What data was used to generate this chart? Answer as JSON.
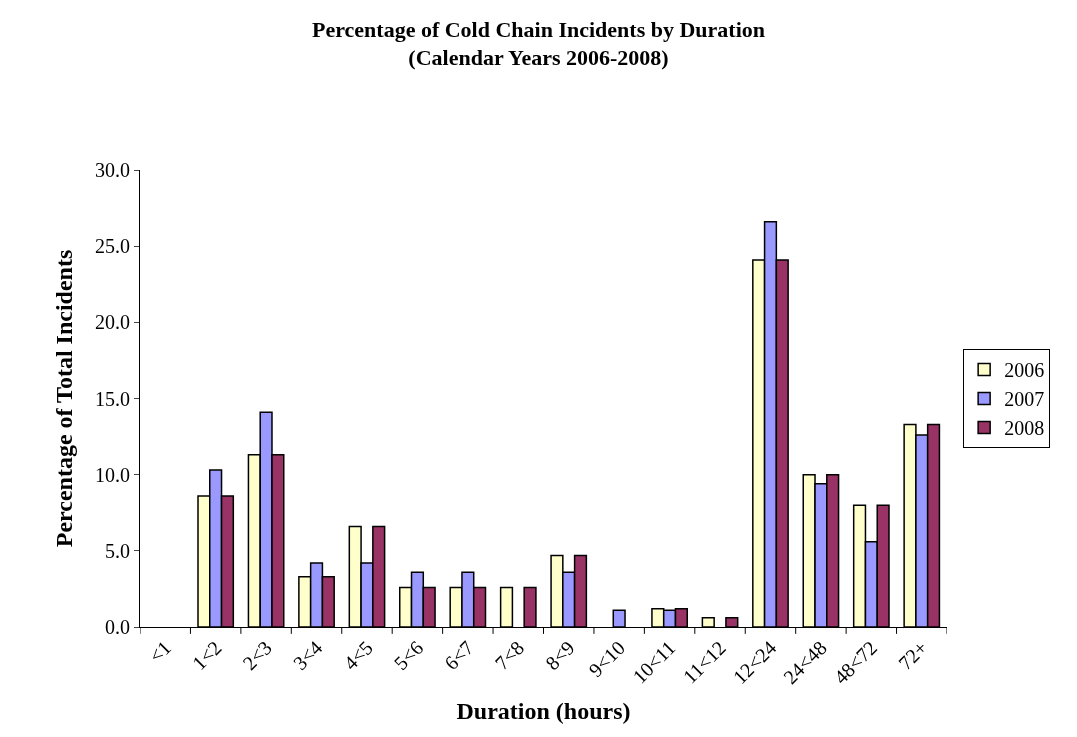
{
  "chart_data": {
    "type": "bar",
    "title": "Percentage of Cold Chain Incidents by Duration",
    "subtitle": "(Calendar Years 2006-2008)",
    "xlabel": "Duration (hours)",
    "ylabel": "Percentage of Total Incidents",
    "categories": [
      "<1",
      "1<2",
      "2<3",
      "3<4",
      "4<5",
      "5<6",
      "6<7",
      "7<8",
      "8<9",
      "9<10",
      "10<11",
      "11<12",
      "12<24",
      "24<48",
      "48<72",
      "72+"
    ],
    "series": [
      {
        "name": "2006",
        "color": "#ffffcc",
        "values": [
          null,
          8.6,
          11.3,
          3.3,
          6.6,
          2.6,
          2.6,
          2.6,
          4.7,
          null,
          1.2,
          0.6,
          24.1,
          10.0,
          8.0,
          13.3
        ]
      },
      {
        "name": "2007",
        "color": "#9999ff",
        "values": [
          null,
          10.3,
          14.1,
          4.2,
          4.2,
          3.6,
          3.6,
          null,
          3.6,
          1.1,
          1.1,
          null,
          26.6,
          9.4,
          5.6,
          12.6
        ]
      },
      {
        "name": "2008",
        "color": "#993366",
        "values": [
          null,
          8.6,
          11.3,
          3.3,
          6.6,
          2.6,
          2.6,
          2.6,
          4.7,
          null,
          1.2,
          0.6,
          24.1,
          10.0,
          8.0,
          13.3
        ]
      }
    ],
    "ylim": [
      0,
      30
    ],
    "yticks": [
      {
        "value": 0,
        "label": "0.0"
      },
      {
        "value": 5,
        "label": "5.0"
      },
      {
        "value": 10,
        "label": "10.0"
      },
      {
        "value": 15,
        "label": "15.0"
      },
      {
        "value": 20,
        "label": "20.0"
      },
      {
        "value": 25,
        "label": "25.0"
      },
      {
        "value": 30,
        "label": "30.0"
      }
    ],
    "legend": "right"
  }
}
